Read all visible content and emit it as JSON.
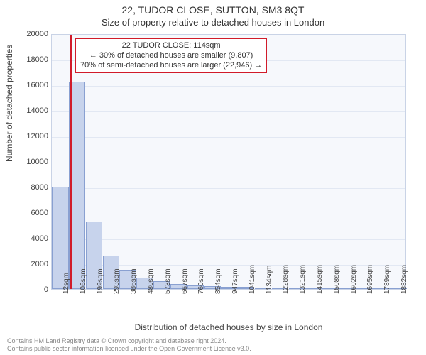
{
  "title_line1": "22, TUDOR CLOSE, SUTTON, SM3 8QT",
  "title_line2": "Size of property relative to detached houses in London",
  "y_axis": {
    "label": "Number of detached properties",
    "min": 0,
    "max": 20000,
    "tick_step": 2000,
    "ticks": [
      0,
      2000,
      4000,
      6000,
      8000,
      10000,
      12000,
      14000,
      16000,
      18000,
      20000
    ],
    "tick_labels": [
      "0",
      "2000",
      "4000",
      "6000",
      "8000",
      "10000",
      "12000",
      "14000",
      "16000",
      "18000",
      "20000"
    ]
  },
  "x_axis": {
    "label": "Distribution of detached houses by size in London",
    "tick_labels": [
      "12sqm",
      "106sqm",
      "199sqm",
      "293sqm",
      "386sqm",
      "480sqm",
      "573sqm",
      "667sqm",
      "760sqm",
      "854sqm",
      "947sqm",
      "1041sqm",
      "1134sqm",
      "1228sqm",
      "1321sqm",
      "1415sqm",
      "1508sqm",
      "1602sqm",
      "1695sqm",
      "1789sqm",
      "1882sqm"
    ]
  },
  "chart": {
    "type": "histogram",
    "background_color": "#f6f8fc",
    "grid_color": "#e2e8f3",
    "border_color": "#c9d3e6",
    "bar_fill": "#c7d3ec",
    "bar_border": "#89a0d1",
    "marker_color": "#d11b2a",
    "n_bars": 21,
    "values": [
      8000,
      16200,
      5300,
      2600,
      1500,
      900,
      600,
      400,
      300,
      200,
      180,
      150,
      130,
      110,
      90,
      80,
      70,
      60,
      50,
      40,
      30
    ],
    "marker_bin_index": 1,
    "marker_fraction_in_bin": 0.1
  },
  "annotation": {
    "line1": "22 TUDOR CLOSE: 114sqm",
    "line2": "← 30% of detached houses are smaller (9,807)",
    "line3": "70% of semi-detached houses are larger (22,946) →"
  },
  "footer": {
    "line1": "Contains HM Land Registry data © Crown copyright and database right 2024.",
    "line2": "Contains public sector information licensed under the Open Government Licence v3.0."
  },
  "fontsizes": {
    "title": 14,
    "subtitle": 13,
    "axis_label": 12,
    "tick": 11,
    "xtick": 10,
    "annotation": 11,
    "footer": 9
  }
}
